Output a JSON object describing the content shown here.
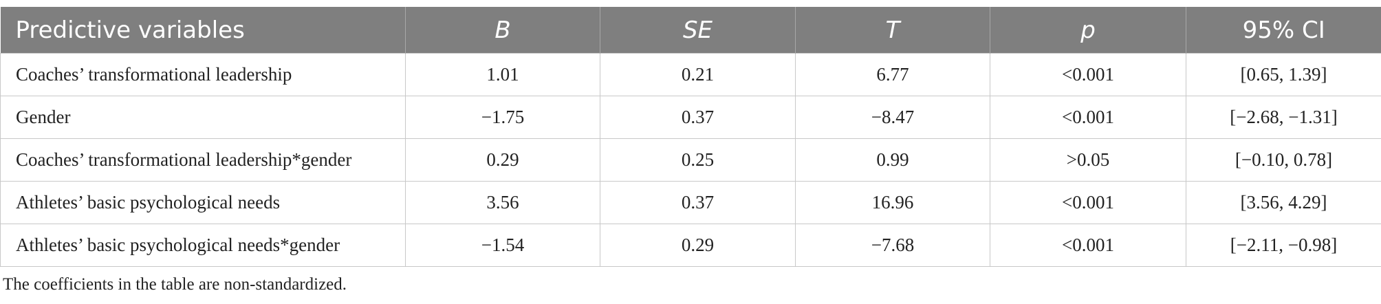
{
  "table": {
    "header": [
      "Predictive variables",
      "B",
      "SE",
      "T",
      "p",
      "95% CI"
    ],
    "rows": [
      [
        "Coaches’ transformational leadership",
        "1.01",
        "0.21",
        "6.77",
        "<0.001",
        "[0.65, 1.39]"
      ],
      [
        "Gender",
        "−1.75",
        "0.37",
        "−8.47",
        "<0.001",
        "[−2.68, −1.31]"
      ],
      [
        "Coaches’ transformational leadership*gender",
        "0.29",
        "0.25",
        "0.99",
        ">0.05",
        "[−0.10, 0.78]"
      ],
      [
        "Athletes’ basic psychological needs",
        "3.56",
        "0.37",
        "16.96",
        "<0.001",
        "[3.56, 4.29]"
      ],
      [
        "Athletes’ basic psychological needs*gender",
        "−1.54",
        "0.29",
        "−7.68",
        "<0.001",
        "[−2.11, −0.98]"
      ]
    ],
    "note": "The coefficients in the table are non-standardized."
  }
}
